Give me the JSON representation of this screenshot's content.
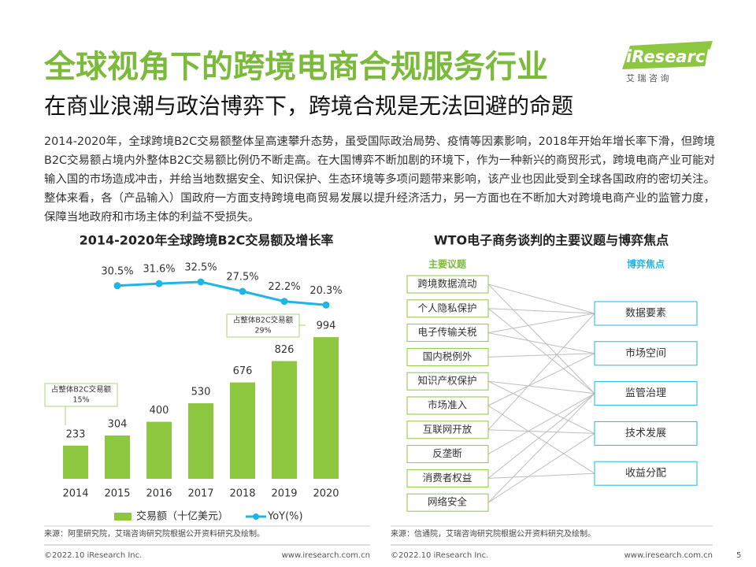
{
  "header": {
    "title": "全球视角下的跨境电商合规服务行业",
    "subtitle": "在商业浪潮与政治博弈下，跨境合规是无法回避的命题",
    "logo": "iResearch",
    "logo_cn": "艾 瑞 咨 询"
  },
  "body": "2014-2020年，全球跨境B2C交易额整体呈高速攀升态势，虽受国际政治局势、疫情等因素影响，2018年开始年增长率下滑，但跨境B2C交易额占境内外整体B2C交易额比例仍不断走高。在大国博弈不断加剧的环境下，作为一种新兴的商贸形式，跨境电商产业可能对输入国的市场造成冲击，并给当地数据安全、知识保护、生态环境等多项问题带来影响，该产业也因此受到全球各国政府的密切关注。整体来看，各（产品输入）国政府一方面支持跨境电商贸易发展以提升经济活力，另一方面也在不断加大对跨境电商产业的监管力度，保障当地政府和市场主体的利益不受损失。",
  "chart_data": {
    "type": "bar",
    "title": "2014-2020年全球跨境B2C交易额及增长率",
    "categories": [
      "2014",
      "2015",
      "2016",
      "2017",
      "2018",
      "2019",
      "2020"
    ],
    "series": [
      {
        "name": "交易额（十亿美元）",
        "color": "#8dc63f",
        "values": [
          233,
          304,
          400,
          530,
          676,
          826,
          994
        ]
      },
      {
        "name": "YoY(%)",
        "color": "#1fb5e6",
        "axis": "y2",
        "values": [
          null,
          30.5,
          31.6,
          32.5,
          27.5,
          22.2,
          20.3
        ],
        "value_labels": [
          null,
          "30.5%",
          "31.6%",
          "32.5%",
          "27.5%",
          "22.2%",
          "20.3%"
        ]
      }
    ],
    "ylim": [
      0,
      1000
    ],
    "y2lim": [
      15,
      40
    ],
    "annotations": [
      {
        "text": "占整体B2C交易额",
        "value": "15%"
      },
      {
        "text": "占整体B2C交易额",
        "value": "29%"
      }
    ],
    "source": "来源：阿里研究院，艾瑞咨询研究院根据公开资料研究及绘制。"
  },
  "diagram": {
    "title": "WTO电子商务谈判的主要议题与博弈焦点",
    "left_header": "主要议题",
    "right_header": "博弈焦点",
    "left": [
      "跨境数据流动",
      "个人隐私保护",
      "电子传输关税",
      "国内税例外",
      "知识产权保护",
      "市场准入",
      "互联网开放",
      "反垄断",
      "消费者权益",
      "网络安全"
    ],
    "right": [
      "数据要素",
      "市场空间",
      "监管治理",
      "技术发展",
      "收益分配"
    ],
    "source": "来源：信通院，艾瑞咨询研究院根据公开资料研究及绘制。"
  },
  "footer": {
    "copyright": "©2022.10 iResearch Inc.",
    "url": "www.iresearch.com.cn",
    "page": "5"
  }
}
